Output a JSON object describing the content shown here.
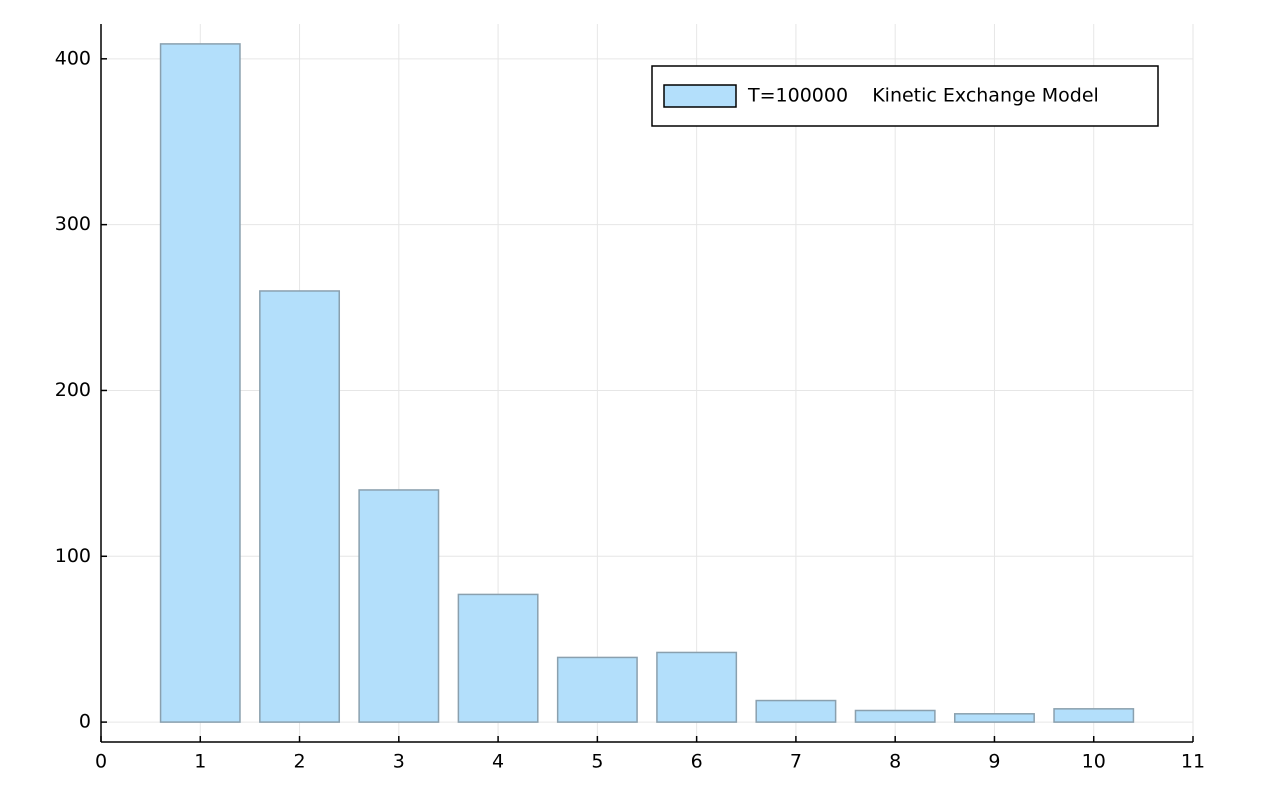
{
  "chart_data": {
    "type": "bar",
    "x": [
      1,
      2,
      3,
      4,
      5,
      6,
      7,
      8,
      9,
      10
    ],
    "series": [
      {
        "name": "T=100000    Kinetic Exchange Model",
        "color": "#b3dffb",
        "values": [
          409,
          260,
          140,
          77,
          39,
          42,
          13,
          7,
          5,
          8
        ]
      }
    ],
    "xlim": [
      0,
      11
    ],
    "xticks": [
      0,
      1,
      2,
      3,
      4,
      5,
      6,
      7,
      8,
      9,
      10,
      11
    ],
    "ylim": [
      -12,
      421
    ],
    "yticks": [
      0,
      100,
      200,
      300,
      400
    ],
    "grid": true,
    "legend": "top-right"
  }
}
